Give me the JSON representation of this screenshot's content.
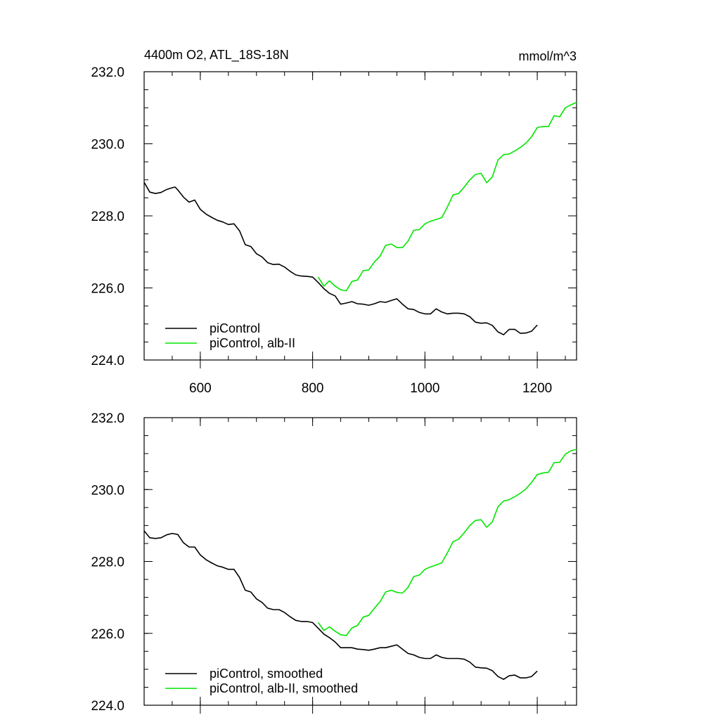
{
  "colors": {
    "control": "#000000",
    "alb": "#00e600",
    "axis": "#000000"
  },
  "chart_data": [
    {
      "type": "line",
      "title": "4400m O2, ATL_18S-18N",
      "units": "mmol/m^3",
      "xlim": [
        500,
        1270
      ],
      "ylim": [
        224,
        232
      ],
      "xticks": [
        600,
        800,
        1000,
        1200
      ],
      "xtick_labels": [
        "600",
        "800",
        "1000",
        "1200"
      ],
      "yticks": [
        224,
        226,
        228,
        230,
        232
      ],
      "ytick_labels": [
        "224.0",
        "226.0",
        "228.0",
        "230.0",
        "232.0"
      ],
      "show_x_labels": true,
      "legend_position": "bottom-left",
      "series": [
        {
          "name": "piControl",
          "color": "#000000",
          "x": [
            500,
            510,
            520,
            530,
            540,
            550,
            555,
            560,
            570,
            580,
            590,
            600,
            610,
            620,
            630,
            640,
            650,
            660,
            670,
            680,
            690,
            700,
            710,
            720,
            730,
            740,
            750,
            760,
            770,
            780,
            790,
            800,
            810,
            820,
            830,
            840,
            850,
            860,
            870,
            880,
            890,
            900,
            910,
            920,
            930,
            940,
            950,
            960,
            970,
            980,
            990,
            1000,
            1010,
            1020,
            1030,
            1040,
            1050,
            1060,
            1070,
            1080,
            1090,
            1100,
            1110,
            1120,
            1130,
            1140,
            1150,
            1160,
            1170,
            1180,
            1190,
            1200
          ],
          "y": [
            228.93,
            228.66,
            228.62,
            228.65,
            228.73,
            228.78,
            228.8,
            228.72,
            228.52,
            228.38,
            228.44,
            228.18,
            228.05,
            227.96,
            227.88,
            227.83,
            227.76,
            227.78,
            227.58,
            227.2,
            227.15,
            226.95,
            226.86,
            226.7,
            226.65,
            226.66,
            226.58,
            226.46,
            226.36,
            226.33,
            226.32,
            226.3,
            226.15,
            225.98,
            225.85,
            225.78,
            225.55,
            225.58,
            225.62,
            225.56,
            225.55,
            225.52,
            225.56,
            225.62,
            225.6,
            225.65,
            225.7,
            225.55,
            225.42,
            225.4,
            225.32,
            225.28,
            225.28,
            225.42,
            225.33,
            225.28,
            225.3,
            225.3,
            225.28,
            225.2,
            225.05,
            225.02,
            225.03,
            224.96,
            224.78,
            224.7,
            224.85,
            224.85,
            224.74,
            224.75,
            224.8,
            224.97
          ]
        },
        {
          "name": "piControl, alb-II",
          "color": "#00e600",
          "x": [
            810,
            820,
            830,
            840,
            850,
            860,
            870,
            880,
            890,
            900,
            910,
            920,
            930,
            940,
            950,
            960,
            970,
            980,
            990,
            1000,
            1010,
            1020,
            1030,
            1040,
            1050,
            1060,
            1070,
            1080,
            1090,
            1100,
            1110,
            1120,
            1130,
            1140,
            1150,
            1160,
            1170,
            1180,
            1190,
            1200,
            1210,
            1220,
            1230,
            1240,
            1250,
            1260,
            1270
          ],
          "y": [
            226.3,
            226.05,
            226.2,
            226.05,
            225.95,
            225.92,
            226.18,
            226.22,
            226.48,
            226.5,
            226.72,
            226.88,
            227.18,
            227.22,
            227.12,
            227.12,
            227.3,
            227.6,
            227.62,
            227.78,
            227.85,
            227.9,
            227.95,
            228.25,
            228.58,
            228.62,
            228.8,
            229.0,
            229.15,
            229.18,
            228.92,
            229.08,
            229.55,
            229.7,
            229.72,
            229.8,
            229.9,
            230.02,
            230.2,
            230.45,
            230.48,
            230.48,
            230.78,
            230.75,
            231.0,
            231.08,
            231.15
          ]
        }
      ]
    },
    {
      "type": "line",
      "xlim": [
        500,
        1270
      ],
      "ylim": [
        224,
        232
      ],
      "xticks": [
        600,
        800,
        1000,
        1200
      ],
      "yticks": [
        224,
        226,
        228,
        230,
        232
      ],
      "ytick_labels": [
        "224.0",
        "226.0",
        "228.0",
        "230.0",
        "232.0"
      ],
      "show_x_labels": false,
      "legend_position": "bottom-left",
      "series": [
        {
          "name": "piControl, smoothed",
          "color": "#000000",
          "x": [
            500,
            510,
            520,
            530,
            540,
            550,
            560,
            570,
            580,
            590,
            600,
            610,
            620,
            630,
            640,
            650,
            660,
            670,
            680,
            690,
            700,
            710,
            720,
            730,
            740,
            750,
            760,
            770,
            780,
            790,
            800,
            810,
            820,
            830,
            840,
            850,
            860,
            870,
            880,
            890,
            900,
            910,
            920,
            930,
            940,
            950,
            960,
            970,
            980,
            990,
            1000,
            1010,
            1020,
            1030,
            1040,
            1050,
            1060,
            1070,
            1080,
            1090,
            1100,
            1110,
            1120,
            1130,
            1140,
            1150,
            1160,
            1170,
            1180,
            1190,
            1200
          ],
          "y": [
            228.85,
            228.66,
            228.64,
            228.66,
            228.74,
            228.78,
            228.75,
            228.52,
            228.4,
            228.4,
            228.18,
            228.05,
            227.96,
            227.88,
            227.84,
            227.78,
            227.78,
            227.55,
            227.2,
            227.15,
            226.96,
            226.86,
            226.7,
            226.66,
            226.66,
            226.58,
            226.46,
            226.36,
            226.33,
            226.33,
            226.3,
            226.14,
            225.98,
            225.88,
            225.76,
            225.6,
            225.6,
            225.6,
            225.56,
            225.55,
            225.53,
            225.56,
            225.6,
            225.6,
            225.64,
            225.68,
            225.56,
            225.44,
            225.4,
            225.33,
            225.3,
            225.3,
            225.4,
            225.33,
            225.3,
            225.3,
            225.3,
            225.28,
            225.2,
            225.06,
            225.04,
            225.03,
            224.96,
            224.8,
            224.72,
            224.82,
            224.84,
            224.76,
            224.76,
            224.8,
            224.95
          ]
        },
        {
          "name": "piControl, alb-II, smoothed",
          "color": "#00e600",
          "x": [
            810,
            820,
            830,
            840,
            850,
            860,
            870,
            880,
            890,
            900,
            910,
            920,
            930,
            940,
            950,
            960,
            970,
            980,
            990,
            1000,
            1010,
            1020,
            1030,
            1040,
            1050,
            1060,
            1070,
            1080,
            1090,
            1100,
            1110,
            1120,
            1130,
            1140,
            1150,
            1160,
            1170,
            1180,
            1190,
            1200,
            1210,
            1220,
            1230,
            1240,
            1250,
            1260,
            1270
          ],
          "y": [
            226.3,
            226.08,
            226.18,
            226.06,
            225.96,
            225.94,
            226.15,
            226.22,
            226.45,
            226.5,
            226.7,
            226.88,
            227.15,
            227.2,
            227.14,
            227.12,
            227.28,
            227.58,
            227.62,
            227.78,
            227.85,
            227.9,
            227.96,
            228.24,
            228.55,
            228.62,
            228.8,
            229.0,
            229.14,
            229.16,
            228.95,
            229.1,
            229.52,
            229.68,
            229.72,
            229.8,
            229.9,
            230.02,
            230.2,
            230.42,
            230.46,
            230.48,
            230.75,
            230.76,
            230.98,
            231.08,
            231.12
          ]
        }
      ]
    }
  ]
}
